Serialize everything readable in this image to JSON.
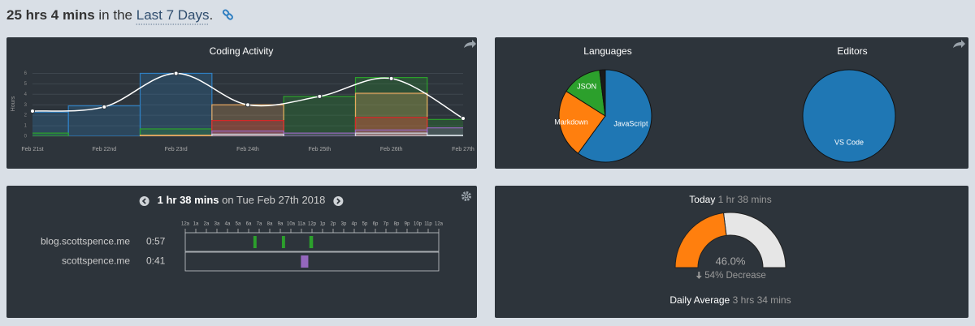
{
  "header": {
    "total": "25 hrs 4 mins",
    "connector": "in the",
    "range": "Last 7 Days",
    "suffix": "."
  },
  "coding_activity": {
    "type": "bar",
    "title": "Coding Activity",
    "y_label": "Hours",
    "categories": [
      "Feb 21st",
      "Feb 22nd",
      "Feb 23rd",
      "Feb 24th",
      "Feb 25th",
      "Feb 26th",
      "Feb 27th"
    ],
    "series": [
      {
        "color": "#2f7fc1",
        "values": [
          2.3,
          2.9,
          6.0,
          null,
          null,
          null,
          null
        ]
      },
      {
        "color": "#2ca02c",
        "values": [
          0.3,
          null,
          0.7,
          null,
          3.8,
          5.6,
          1.6
        ]
      },
      {
        "color": "#e8a860",
        "values": [
          null,
          null,
          0.1,
          3.0,
          null,
          4.1,
          null
        ]
      },
      {
        "color": "#d62728",
        "values": [
          null,
          null,
          null,
          1.5,
          null,
          1.8,
          null
        ]
      },
      {
        "color": "#9467bd",
        "values": [
          null,
          null,
          null,
          0.5,
          0.3,
          0.6,
          0.8
        ]
      },
      {
        "color": "#cfd6dd",
        "values": [
          null,
          null,
          null,
          0.2,
          null,
          0.3,
          0.1
        ]
      }
    ],
    "total": {
      "color": "#ffffff",
      "values": [
        2.4,
        2.8,
        6.0,
        3.0,
        3.8,
        5.5,
        1.7
      ]
    },
    "ylim": [
      0,
      6.5
    ],
    "yticks": [
      0,
      1,
      2,
      3,
      4,
      5,
      6
    ],
    "grid": true
  },
  "languages": {
    "type": "pie",
    "title": "Languages",
    "labels": [
      "JavaScript",
      "Markdown",
      "JSON",
      null
    ],
    "values": [
      60,
      24,
      14,
      2
    ],
    "colors": [
      "#1f77b4",
      "#ff7f0e",
      "#2ca02c",
      "#1a1a1a"
    ]
  },
  "editors": {
    "type": "pie",
    "title": "Editors",
    "labels": [
      "VS Code"
    ],
    "values": [
      100
    ],
    "colors": [
      "#1f77b4"
    ]
  },
  "day": {
    "total": "1 hr 38 mins",
    "connector": "on",
    "date": "Tue Feb 27th 2018",
    "hour_labels": [
      "12a",
      "1a",
      "2a",
      "3a",
      "4a",
      "5a",
      "6a",
      "7a",
      "8a",
      "9a",
      "10a",
      "11a",
      "12p",
      "1p",
      "2p",
      "3p",
      "4p",
      "5p",
      "6p",
      "7p",
      "8p",
      "9p",
      "10p",
      "11p",
      "12a"
    ],
    "xlim": [
      0,
      24
    ],
    "rows": [
      {
        "name": "blog.scottspence.me",
        "time": "0:57",
        "color": "#2ca02c",
        "sessions": [
          [
            6.45,
            6.75
          ],
          [
            9.15,
            9.45
          ],
          [
            11.75,
            12.1
          ]
        ]
      },
      {
        "name": "scottspence.me",
        "time": "0:41",
        "color": "#9467bd",
        "sessions": [
          [
            10.95,
            11.65
          ]
        ]
      }
    ]
  },
  "today": {
    "label": "Today",
    "total": "1 hr 38 mins",
    "gauge": {
      "type": "gauge",
      "value": 46.0,
      "value_label": "46.0%",
      "range": [
        0,
        100
      ],
      "colors": [
        "#ff7f0e",
        "#e6e6e6"
      ]
    },
    "change": "54% Decrease",
    "average_label": "Daily Average",
    "average": "3 hrs 34 mins"
  }
}
